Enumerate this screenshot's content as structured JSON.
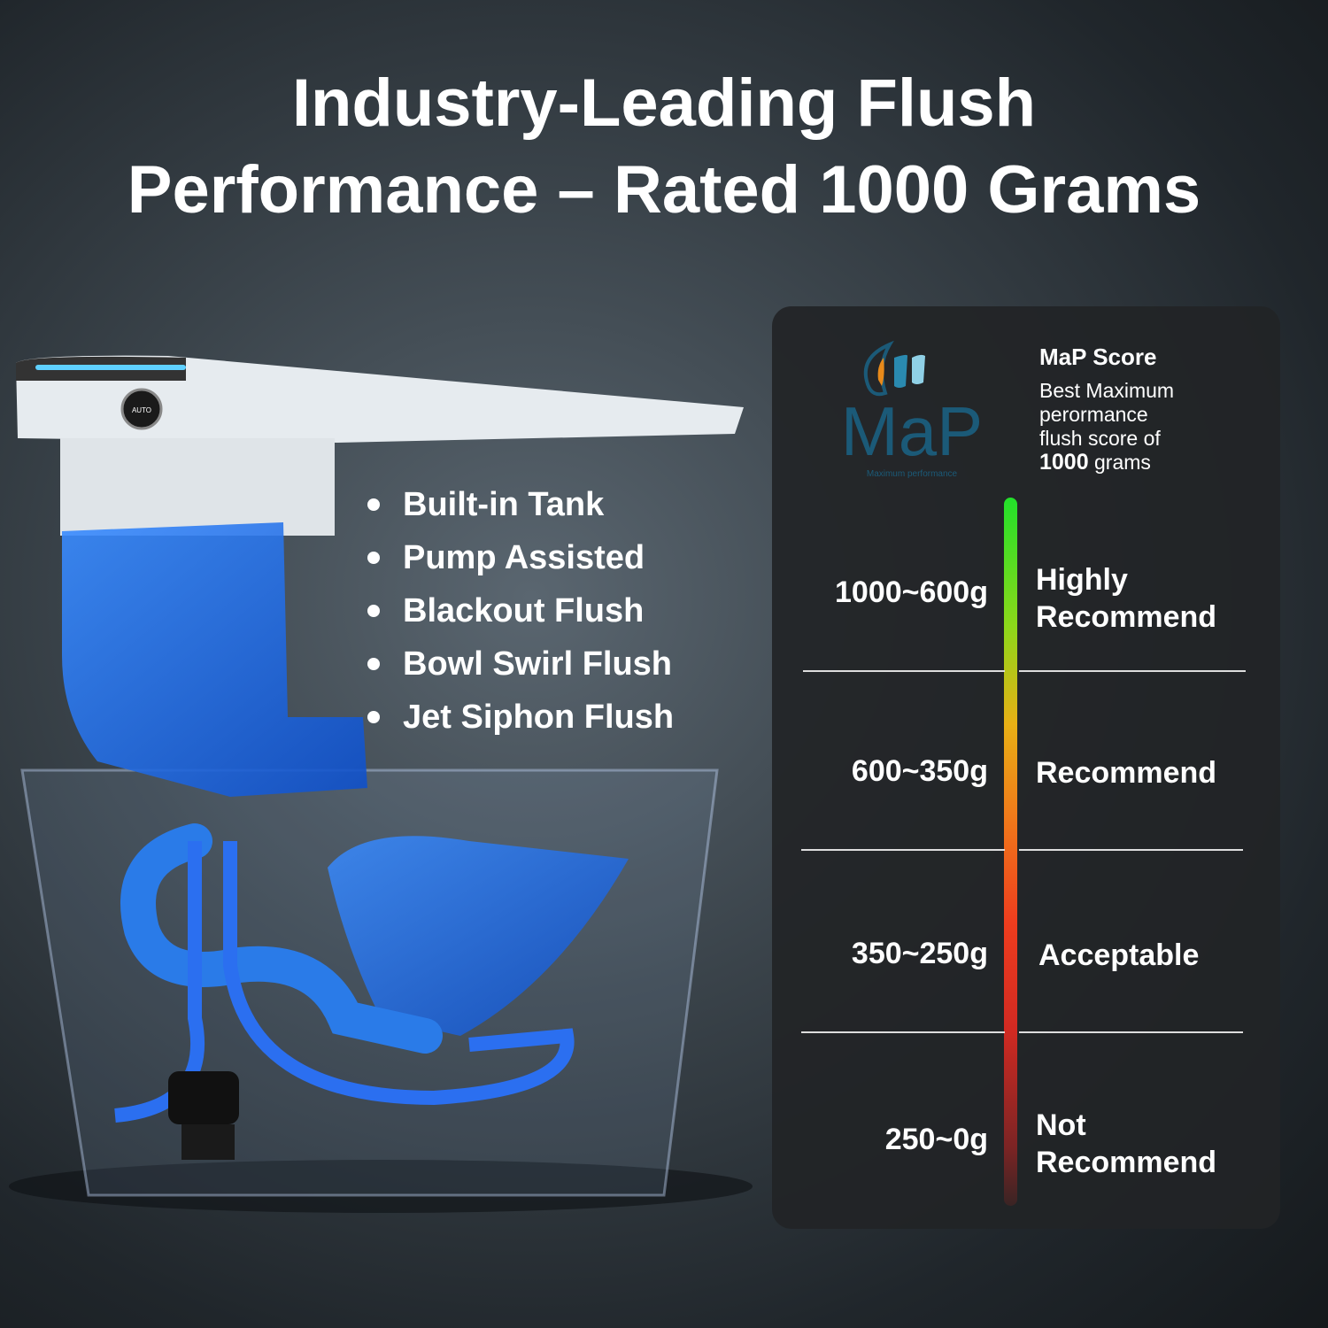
{
  "title": {
    "line1": "Industry-Leading Flush",
    "line2": "Performance – Rated 1000 Grams"
  },
  "features": [
    "Built-in Tank",
    "Pump Assisted",
    "Blackout Flush",
    "Bowl Swirl Flush",
    "Jet Siphon Flush"
  ],
  "seat_button_label": "AUTO",
  "panel": {
    "logo": {
      "text": "MaP",
      "subtext": "Maximum performance"
    },
    "heading": "MaP Score",
    "desc_lines": [
      "Best Maximum",
      "perormance",
      "flush score of"
    ],
    "desc_value": "1000",
    "desc_unit": "grams",
    "rows": [
      {
        "range": "1000~600g",
        "label_lines": [
          "Highly",
          "Recommend"
        ]
      },
      {
        "range": "600~350g",
        "label_lines": [
          "Recommend",
          ""
        ]
      },
      {
        "range": "350~250g",
        "label_lines": [
          "Acceptable",
          ""
        ]
      },
      {
        "range": "250~0g",
        "label_lines": [
          "Not",
          "Recommend"
        ]
      }
    ]
  },
  "colors": {
    "water": "#1f6fe0",
    "logo": "#1b5a78",
    "bar_top": "#22e02a",
    "bar_bottom": "#3a2424"
  }
}
